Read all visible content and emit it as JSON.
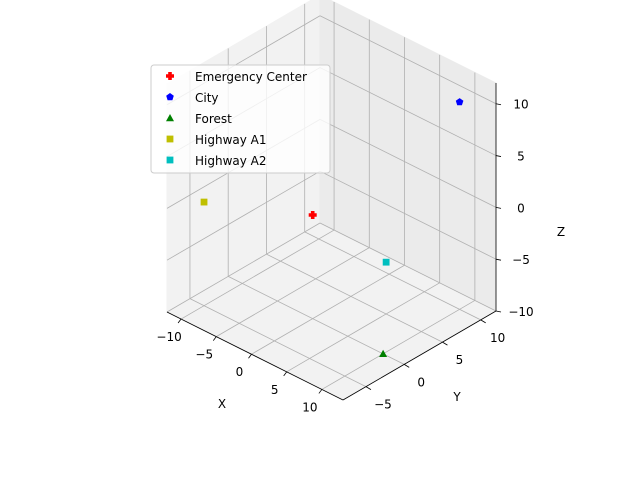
{
  "chart_data": {
    "type": "scatter",
    "projection": "3d",
    "xlabel": "X",
    "ylabel": "Y",
    "zlabel": "Z",
    "xlim": [
      -12,
      13
    ],
    "ylim": [
      -8,
      12
    ],
    "zlim": [
      -10,
      12
    ],
    "xticks": [
      -10,
      -5,
      0,
      5,
      10
    ],
    "yticks": [
      -5,
      0,
      5,
      10
    ],
    "zticks": [
      -10,
      -5,
      0,
      5,
      10
    ],
    "grid": true,
    "legend_position": "top-left",
    "series": [
      {
        "name": "Emergency Center",
        "marker": "plus",
        "color": "#ff0000",
        "points": [
          [
            0,
            0,
            0
          ]
        ]
      },
      {
        "name": "City",
        "marker": "pentagon",
        "color": "#0000ff",
        "points": [
          [
            10,
            10,
            10
          ]
        ]
      },
      {
        "name": "Forest",
        "marker": "triangle",
        "color": "#008000",
        "points": [
          [
            10,
            0,
            -10
          ]
        ]
      },
      {
        "name": "Highway A1",
        "marker": "square",
        "color": "#bfbf00",
        "points": [
          [
            -10,
            -5,
            0
          ]
        ]
      },
      {
        "name": "Highway A2",
        "marker": "square",
        "color": "#00bfbf",
        "points": [
          [
            5,
            5,
            -5
          ]
        ]
      }
    ]
  }
}
